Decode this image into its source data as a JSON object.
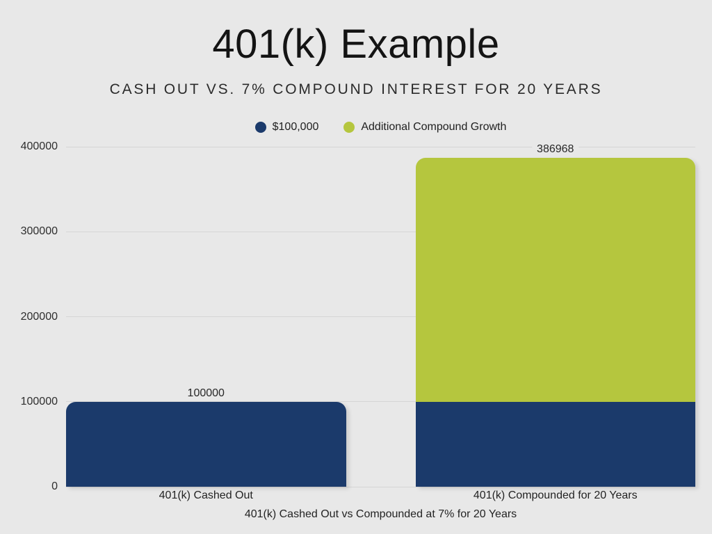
{
  "page": {
    "background": "#e8e8e8"
  },
  "colors": {
    "background": "#e8e8e8",
    "gridline": "#d5d5d5",
    "navy": "#1b3a6b",
    "green": "#b5c63e",
    "label_text": "#272727"
  },
  "chart_data": {
    "type": "bar",
    "stacked": true,
    "title": "401(k) Example",
    "subtitle": "CASH OUT VS. 7% COMPOUND INTEREST FOR 20 YEARS",
    "categories": [
      "401(k) Cashed Out",
      "401(k) Compounded for 20 Years"
    ],
    "series": [
      {
        "name": "$100,000",
        "color": "#1b3a6b",
        "values": [
          100000,
          100000
        ]
      },
      {
        "name": "Additional Compound Growth",
        "color": "#b5c63e",
        "values": [
          0,
          286968
        ]
      }
    ],
    "totals": [
      100000,
      386968
    ],
    "total_labels": [
      "100000",
      "386968"
    ],
    "y_ticks": [
      0,
      100000,
      200000,
      300000,
      400000
    ],
    "ylim": [
      0,
      400000
    ],
    "xlabel": "401(k) Cashed Out vs Compounded at 7% for 20 Years",
    "ylabel": "",
    "grid": true,
    "legend_position": "top",
    "legend": [
      {
        "label": "$100,000",
        "color": "#1b3a6b"
      },
      {
        "label": "Additional Compound Growth",
        "color": "#b5c63e"
      }
    ]
  }
}
